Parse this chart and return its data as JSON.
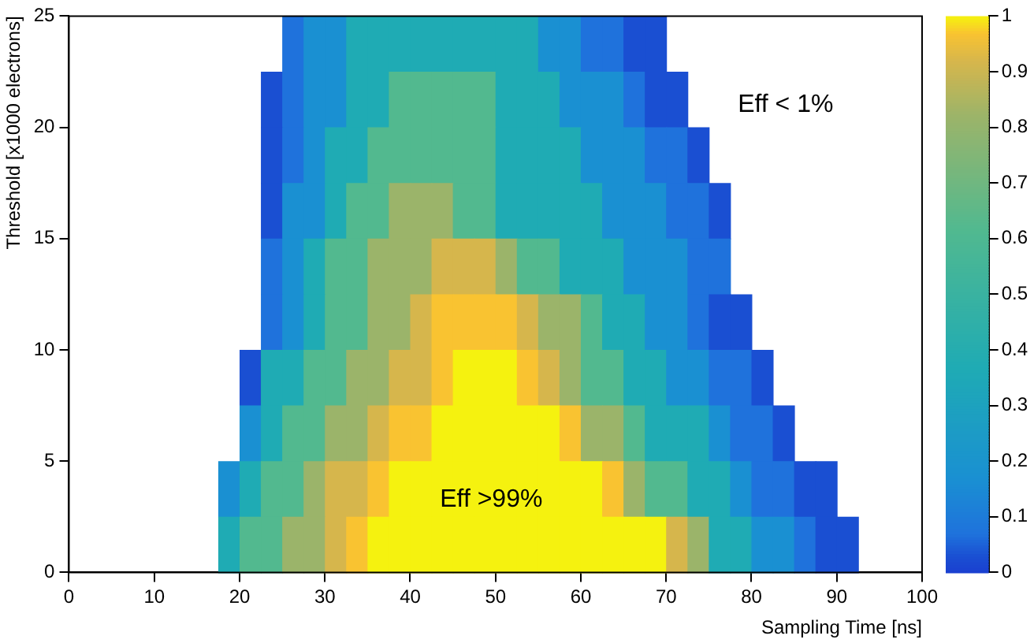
{
  "chart_data": {
    "type": "heatmap",
    "xlabel": "Sampling Time [ns]",
    "ylabel": "Threshold [x1000 electrons]",
    "xlim": [
      0,
      100
    ],
    "xticks": [
      0,
      10,
      20,
      30,
      40,
      50,
      60,
      70,
      80,
      90,
      100
    ],
    "ylim": [
      0,
      25
    ],
    "yticks": [
      0,
      5,
      10,
      15,
      20,
      25
    ],
    "clim": [
      0,
      1
    ],
    "cticks": [
      0,
      0.1,
      0.2,
      0.3,
      0.4,
      0.5,
      0.6,
      0.7,
      0.8,
      0.9,
      1
    ],
    "cells": [
      [
        null,
        null,
        null,
        null,
        null,
        null,
        null,
        null,
        null,
        null,
        0.07,
        0.17,
        0.17,
        0.37,
        0.37,
        0.37,
        0.37,
        0.37,
        0.37,
        0.37,
        0.37,
        0.37,
        0.17,
        0.17,
        0.07,
        0.07,
        0.03,
        0.03,
        null,
        null,
        null,
        null,
        null,
        null,
        null,
        null,
        null,
        null,
        null,
        null
      ],
      [
        null,
        null,
        null,
        null,
        null,
        null,
        null,
        null,
        null,
        0.03,
        0.07,
        0.17,
        0.17,
        0.37,
        0.37,
        0.62,
        0.62,
        0.62,
        0.62,
        0.62,
        0.37,
        0.37,
        0.37,
        0.17,
        0.17,
        0.17,
        0.07,
        0.03,
        0.03,
        null,
        null,
        null,
        null,
        null,
        null,
        null,
        null,
        null,
        null,
        null
      ],
      [
        null,
        null,
        null,
        null,
        null,
        null,
        null,
        null,
        null,
        0.03,
        0.07,
        0.17,
        0.37,
        0.37,
        0.62,
        0.62,
        0.62,
        0.62,
        0.62,
        0.62,
        0.37,
        0.37,
        0.37,
        0.37,
        0.17,
        0.17,
        0.17,
        0.07,
        0.07,
        0.03,
        null,
        null,
        null,
        null,
        null,
        null,
        null,
        null,
        null,
        null
      ],
      [
        null,
        null,
        null,
        null,
        null,
        null,
        null,
        null,
        null,
        0.03,
        0.17,
        0.17,
        0.37,
        0.62,
        0.62,
        0.82,
        0.82,
        0.82,
        0.62,
        0.62,
        0.37,
        0.37,
        0.37,
        0.37,
        0.37,
        0.17,
        0.17,
        0.17,
        0.07,
        0.07,
        0.03,
        null,
        null,
        null,
        null,
        null,
        null,
        null,
        null,
        null
      ],
      [
        null,
        null,
        null,
        null,
        null,
        null,
        null,
        null,
        null,
        0.07,
        0.17,
        0.37,
        0.62,
        0.62,
        0.82,
        0.82,
        0.82,
        0.92,
        0.92,
        0.92,
        0.82,
        0.62,
        0.62,
        0.37,
        0.37,
        0.37,
        0.17,
        0.17,
        0.17,
        0.07,
        0.07,
        null,
        null,
        null,
        null,
        null,
        null,
        null,
        null,
        null
      ],
      [
        null,
        null,
        null,
        null,
        null,
        null,
        null,
        null,
        null,
        0.07,
        0.17,
        0.37,
        0.62,
        0.62,
        0.82,
        0.82,
        0.92,
        0.97,
        0.97,
        0.97,
        0.97,
        0.92,
        0.82,
        0.82,
        0.62,
        0.37,
        0.37,
        0.17,
        0.17,
        0.07,
        0.03,
        0.03,
        null,
        null,
        null,
        null,
        null,
        null,
        null,
        null
      ],
      [
        null,
        null,
        null,
        null,
        null,
        null,
        null,
        null,
        0.03,
        0.37,
        0.37,
        0.62,
        0.62,
        0.82,
        0.82,
        0.92,
        0.92,
        0.97,
        1,
        1,
        1,
        0.97,
        0.92,
        0.82,
        0.62,
        0.62,
        0.37,
        0.37,
        0.17,
        0.17,
        0.07,
        0.07,
        0.03,
        null,
        null,
        null,
        null,
        null,
        null,
        null
      ],
      [
        null,
        null,
        null,
        null,
        null,
        null,
        null,
        null,
        0.17,
        0.37,
        0.62,
        0.62,
        0.82,
        0.82,
        0.92,
        0.97,
        0.97,
        1,
        1,
        1,
        1,
        1,
        1,
        0.97,
        0.82,
        0.82,
        0.62,
        0.37,
        0.37,
        0.37,
        0.17,
        0.07,
        0.07,
        0.03,
        null,
        null,
        null,
        null,
        null,
        null
      ],
      [
        null,
        null,
        null,
        null,
        null,
        null,
        null,
        0.17,
        0.37,
        0.62,
        0.62,
        0.82,
        0.92,
        0.92,
        0.97,
        1,
        1,
        1,
        1,
        1,
        1,
        1,
        1,
        1,
        1,
        0.97,
        0.82,
        0.62,
        0.62,
        0.37,
        0.37,
        0.17,
        0.07,
        0.07,
        0.03,
        0.03,
        null,
        null,
        null,
        null
      ],
      [
        null,
        null,
        null,
        null,
        null,
        null,
        null,
        0.37,
        0.62,
        0.62,
        0.82,
        0.82,
        0.92,
        0.97,
        1,
        1,
        1,
        1,
        1,
        1,
        1,
        1,
        1,
        1,
        1,
        1,
        1,
        1,
        0.92,
        0.82,
        0.37,
        0.37,
        0.17,
        0.17,
        0.07,
        0.03,
        0.03,
        null,
        null,
        null
      ]
    ],
    "annotations": [
      "Eff < 1%",
      "Eff >99%"
    ]
  }
}
